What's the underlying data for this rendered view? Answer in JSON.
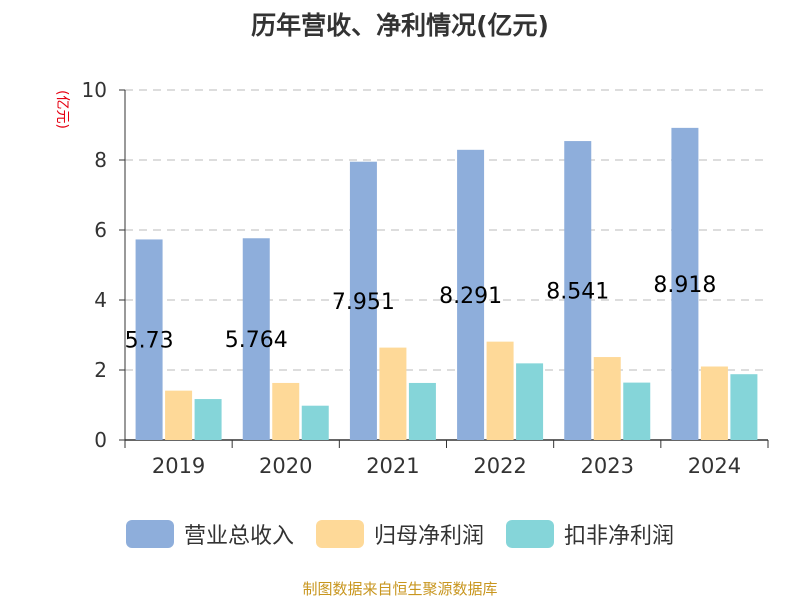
{
  "chart_data": {
    "type": "bar",
    "title": "历年营收、净利情况(亿元)",
    "ylabel": "(亿元)",
    "categories": [
      "2019",
      "2020",
      "2021",
      "2022",
      "2023",
      "2024"
    ],
    "ylim": [
      0,
      10
    ],
    "yticks": [
      "0",
      "2",
      "4",
      "6",
      "8",
      "10"
    ],
    "grid": true,
    "legend_position": "bottom",
    "series": [
      {
        "name": "营业总收入",
        "color": "#8eaedb",
        "values": [
          5.73,
          5.764,
          7.951,
          8.291,
          8.541,
          8.918
        ],
        "data_labels": [
          "5.73",
          "5.764",
          "7.951",
          "8.291",
          "8.541",
          "8.918"
        ]
      },
      {
        "name": "归母净利润",
        "color": "#fed998",
        "values": [
          1.41,
          1.63,
          2.64,
          2.81,
          2.37,
          2.1
        ]
      },
      {
        "name": "扣非净利润",
        "color": "#85d5d9",
        "values": [
          1.17,
          0.98,
          1.63,
          2.19,
          1.64,
          1.88
        ]
      }
    ]
  },
  "source_note": "制图数据来自恒生聚源数据库"
}
